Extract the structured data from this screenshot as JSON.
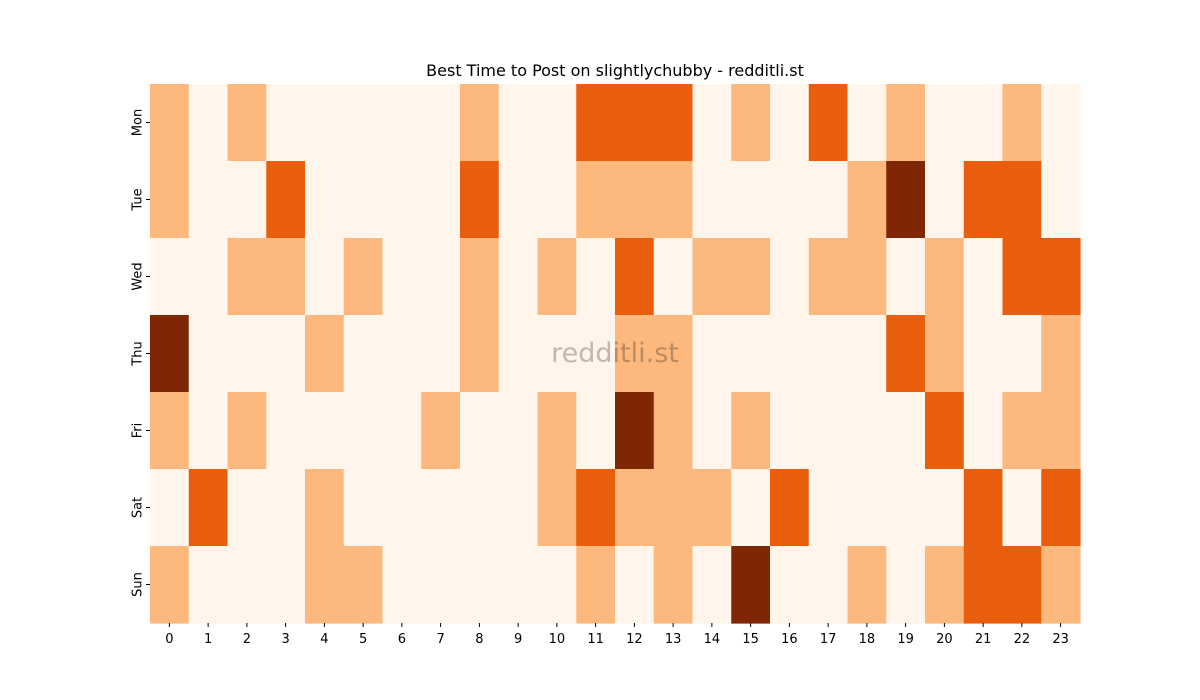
{
  "chart_data": {
    "type": "heatmap",
    "title": "Best Time to Post on slightlychubby - redditli.st",
    "watermark": "redditli.st",
    "xlabel": "",
    "ylabel": "",
    "x_ticks": [
      "0",
      "1",
      "2",
      "3",
      "4",
      "5",
      "6",
      "7",
      "8",
      "9",
      "10",
      "11",
      "12",
      "13",
      "14",
      "15",
      "16",
      "17",
      "18",
      "19",
      "20",
      "21",
      "22",
      "23"
    ],
    "y_ticks": [
      "Mon",
      "Tue",
      "Wed",
      "Thu",
      "Fri",
      "Sat",
      "Sun"
    ],
    "color_levels": [
      "#fff5eb",
      "#fdb97d",
      "#e95e0d",
      "#7f2704"
    ],
    "values": [
      [
        1,
        0,
        1,
        0,
        0,
        0,
        0,
        0,
        1,
        0,
        0,
        2,
        2,
        2,
        0,
        1,
        0,
        2,
        0,
        1,
        0,
        0,
        1,
        0
      ],
      [
        1,
        0,
        0,
        2,
        0,
        0,
        0,
        0,
        2,
        0,
        0,
        1,
        1,
        1,
        0,
        0,
        0,
        0,
        1,
        3,
        0,
        2,
        2,
        0
      ],
      [
        0,
        0,
        1,
        1,
        0,
        1,
        0,
        0,
        1,
        0,
        1,
        0,
        2,
        0,
        1,
        1,
        0,
        1,
        1,
        0,
        1,
        0,
        2,
        2
      ],
      [
        3,
        0,
        0,
        0,
        1,
        0,
        0,
        0,
        1,
        0,
        0,
        0,
        1,
        1,
        0,
        0,
        0,
        0,
        0,
        2,
        1,
        0,
        0,
        1
      ],
      [
        1,
        0,
        1,
        0,
        0,
        0,
        0,
        1,
        0,
        0,
        1,
        0,
        3,
        1,
        0,
        1,
        0,
        0,
        0,
        0,
        2,
        0,
        1,
        1
      ],
      [
        0,
        2,
        0,
        0,
        1,
        0,
        0,
        0,
        0,
        0,
        1,
        2,
        1,
        1,
        1,
        0,
        2,
        0,
        0,
        0,
        0,
        2,
        0,
        2
      ],
      [
        1,
        0,
        0,
        0,
        1,
        1,
        0,
        0,
        0,
        0,
        0,
        1,
        0,
        1,
        0,
        3,
        0,
        0,
        1,
        0,
        1,
        2,
        2,
        1
      ]
    ]
  }
}
